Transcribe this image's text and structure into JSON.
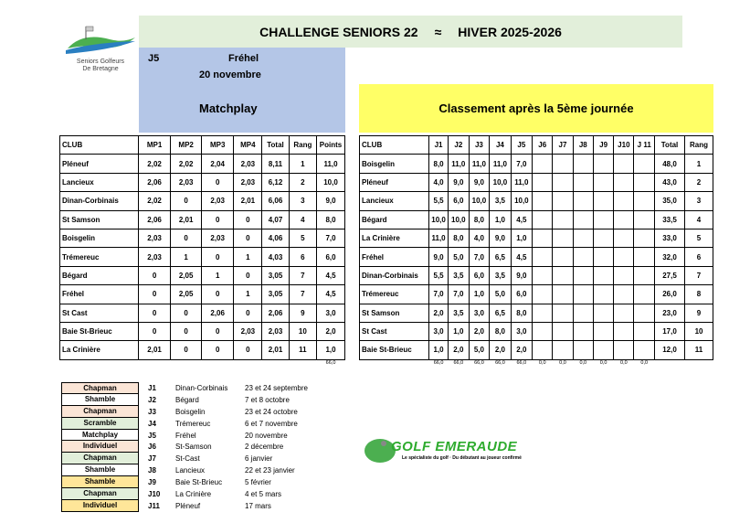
{
  "logo": {
    "text1": "Seniors Golfeurs",
    "text2": "De Bretagne"
  },
  "title": {
    "left": "CHALLENGE SENIORS 22",
    "sep": "≈",
    "right": "HIVER  2025-2026"
  },
  "event": {
    "round": "J5",
    "club": "Fréhel",
    "date": "20 novembre",
    "format": "Matchplay"
  },
  "ranking_title": "Classement après la 5ème journée",
  "matchplay": {
    "headers": [
      "CLUB",
      "MP1",
      "MP2",
      "MP3",
      "MP4",
      "Total",
      "Rang",
      "Points"
    ],
    "rows": [
      [
        "Pléneuf",
        "2,02",
        "2,02",
        "2,04",
        "2,03",
        "8,11",
        "1",
        "11,0"
      ],
      [
        "Lancieux",
        "2,06",
        "2,03",
        "0",
        "2,03",
        "6,12",
        "2",
        "10,0"
      ],
      [
        "Dinan-Corbinais",
        "2,02",
        "0",
        "2,03",
        "2,01",
        "6,06",
        "3",
        "9,0"
      ],
      [
        "St Samson",
        "2,06",
        "2,01",
        "0",
        "0",
        "4,07",
        "4",
        "8,0"
      ],
      [
        "Boisgelin",
        "2,03",
        "0",
        "2,03",
        "0",
        "4,06",
        "5",
        "7,0"
      ],
      [
        "Trémereuc",
        "2,03",
        "1",
        "0",
        "1",
        "4,03",
        "6",
        "6,0"
      ],
      [
        "Bégard",
        "0",
        "2,05",
        "1",
        "0",
        "3,05",
        "7",
        "4,5"
      ],
      [
        "Fréhel",
        "0",
        "2,05",
        "0",
        "1",
        "3,05",
        "7",
        "4,5"
      ],
      [
        "St Cast",
        "0",
        "0",
        "2,06",
        "0",
        "2,06",
        "9",
        "3,0"
      ],
      [
        "Baie St-Brieuc",
        "0",
        "0",
        "0",
        "2,03",
        "2,03",
        "10",
        "2,0"
      ],
      [
        "La Crinière",
        "2,01",
        "0",
        "0",
        "0",
        "2,01",
        "11",
        "1,0"
      ]
    ],
    "points_sum": "66,0"
  },
  "ranking": {
    "headers": [
      "CLUB",
      "J1",
      "J2",
      "J3",
      "J4",
      "J5",
      "J6",
      "J7",
      "J8",
      "J9",
      "J10",
      "J 11",
      "Total",
      "Rang"
    ],
    "rows": [
      [
        "Boisgelin",
        "8,0",
        "11,0",
        "11,0",
        "11,0",
        "7,0",
        "",
        "",
        "",
        "",
        "",
        "",
        "48,0",
        "1"
      ],
      [
        "Pléneuf",
        "4,0",
        "9,0",
        "9,0",
        "10,0",
        "11,0",
        "",
        "",
        "",
        "",
        "",
        "",
        "43,0",
        "2"
      ],
      [
        "Lancieux",
        "5,5",
        "6,0",
        "10,0",
        "3,5",
        "10,0",
        "",
        "",
        "",
        "",
        "",
        "",
        "35,0",
        "3"
      ],
      [
        "Bégard",
        "10,0",
        "10,0",
        "8,0",
        "1,0",
        "4,5",
        "",
        "",
        "",
        "",
        "",
        "",
        "33,5",
        "4"
      ],
      [
        "La Crinière",
        "11,0",
        "8,0",
        "4,0",
        "9,0",
        "1,0",
        "",
        "",
        "",
        "",
        "",
        "",
        "33,0",
        "5"
      ],
      [
        "Fréhel",
        "9,0",
        "5,0",
        "7,0",
        "6,5",
        "4,5",
        "",
        "",
        "",
        "",
        "",
        "",
        "32,0",
        "6"
      ],
      [
        "Dinan-Corbinais",
        "5,5",
        "3,5",
        "6,0",
        "3,5",
        "9,0",
        "",
        "",
        "",
        "",
        "",
        "",
        "27,5",
        "7"
      ],
      [
        "Trémereuc",
        "7,0",
        "7,0",
        "1,0",
        "5,0",
        "6,0",
        "",
        "",
        "",
        "",
        "",
        "",
        "26,0",
        "8"
      ],
      [
        "St Samson",
        "2,0",
        "3,5",
        "3,0",
        "6,5",
        "8,0",
        "",
        "",
        "",
        "",
        "",
        "",
        "23,0",
        "9"
      ],
      [
        "St Cast",
        "3,0",
        "1,0",
        "2,0",
        "8,0",
        "3,0",
        "",
        "",
        "",
        "",
        "",
        "",
        "17,0",
        "10"
      ],
      [
        "Baie St-Brieuc",
        "1,0",
        "2,0",
        "5,0",
        "2,0",
        "2,0",
        "",
        "",
        "",
        "",
        "",
        "",
        "12,0",
        "11"
      ]
    ],
    "column_sums": [
      "66,0",
      "66,0",
      "66,0",
      "66,0",
      "66,0",
      "0,0",
      "0,0",
      "0,0",
      "0,0",
      "0,0",
      "0,0"
    ]
  },
  "schedule": [
    {
      "type": "Chapman",
      "color": "#fbe5d6",
      "round": "J1",
      "club": "Dinan-Corbinais",
      "date": "23 et 24 septembre"
    },
    {
      "type": "Shamble",
      "color": "#ffffff",
      "round": "J2",
      "club": "Bégard",
      "date": "7 et 8 octobre"
    },
    {
      "type": "Chapman",
      "color": "#fbe5d6",
      "round": "J3",
      "club": "Boisgelin",
      "date": "23 et 24 octobre"
    },
    {
      "type": "Scramble",
      "color": "#e2efda",
      "round": "J4",
      "club": "Trémereuc",
      "date": "6 et 7 novembre"
    },
    {
      "type": "Matchplay",
      "color": "#ffffff",
      "round": "J5",
      "club": "Fréhel",
      "date": "20 novembre"
    },
    {
      "type": "Individuel",
      "color": "#fbe5d6",
      "round": "J6",
      "club": "St-Samson",
      "date": "2 décembre"
    },
    {
      "type": "Chapman",
      "color": "#e2efda",
      "round": "J7",
      "club": "St-Cast",
      "date": "6 janvier"
    },
    {
      "type": "Shamble",
      "color": "#ffffff",
      "round": "J8",
      "club": "Lancieux",
      "date": "22 et 23 janvier"
    },
    {
      "type": "Shamble",
      "color": "#ffe699",
      "round": "J9",
      "club": "Baie St-Brieuc",
      "date": "5 février"
    },
    {
      "type": "Chapman",
      "color": "#e2efda",
      "round": "J10",
      "club": "La Crinière",
      "date": "4 et 5 mars"
    },
    {
      "type": "Individuel",
      "color": "#ffe699",
      "round": "J11",
      "club": "Pléneuf",
      "date": "17 mars"
    }
  ],
  "sponsor": {
    "name": "GOLF EMERAUDE",
    "tagline": "Le spécialiste du golf · Du débutant au joueur confirmé"
  }
}
